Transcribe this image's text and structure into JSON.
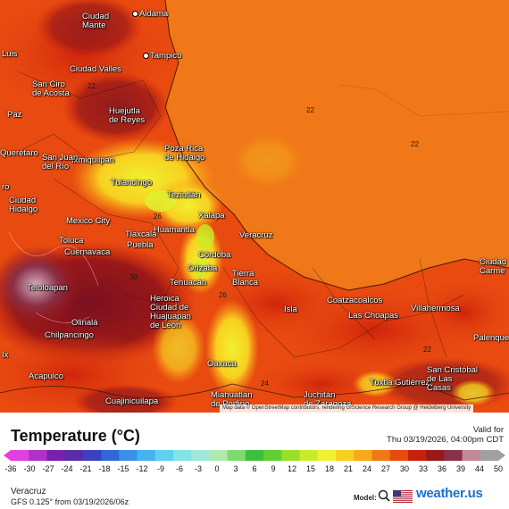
{
  "map": {
    "attribution": "Map data © OpenStreetMap contributors, rendering GIScience Research Group @ Heidelberg University",
    "cities": [
      {
        "name": "Aldama"
      },
      {
        "name": "Ciudad\nMante"
      },
      {
        "name": "Luis"
      },
      {
        "name": "Tampico"
      },
      {
        "name": "Ciudad Valles"
      },
      {
        "name": "San Ciro\nde Acosta"
      },
      {
        "name": "Huejutla\nde Reyes"
      },
      {
        "name": "Poza Rica\nde Hidalgo"
      },
      {
        "name": "Querétaro"
      },
      {
        "name": "Ixmiquilpan"
      },
      {
        "name": "San Juan\ndel Río"
      },
      {
        "name": "Tulancingo"
      },
      {
        "name": "Teziutlán"
      },
      {
        "name": "Xalapa"
      },
      {
        "name": "Veracruz"
      },
      {
        "name": "Ciudad\nHidalgo"
      },
      {
        "name": "Mexico City"
      },
      {
        "name": "Toluca"
      },
      {
        "name": "Huamantla"
      },
      {
        "name": "Tlaxcala"
      },
      {
        "name": "Puebla"
      },
      {
        "name": "Cuernavaca"
      },
      {
        "name": "Córdoba"
      },
      {
        "name": "Orizaba"
      },
      {
        "name": "Tierra\nBlanca"
      },
      {
        "name": "Tehuacán"
      },
      {
        "name": "Teloloapan"
      },
      {
        "name": "Heroica\nCiudad de\nHuajuapan\nde León"
      },
      {
        "name": "Coatzacoalcos"
      },
      {
        "name": "Las Choapas"
      },
      {
        "name": "Villahermosa"
      },
      {
        "name": "Ciudad\nCarme"
      },
      {
        "name": "Isla"
      },
      {
        "name": "Palenque"
      },
      {
        "name": "Olinalá"
      },
      {
        "name": "Chilpancingo"
      },
      {
        "name": "Oaxaca"
      },
      {
        "name": "Acapulco"
      },
      {
        "name": "Miahuatlán\nde Porfirio"
      },
      {
        "name": "Juchitán\nde Zaragoza"
      },
      {
        "name": "Tuxtla Gutiérrez"
      },
      {
        "name": "San Cristóbal\nde Las\nCasas"
      },
      {
        "name": "Cuajinicuilapa"
      },
      {
        "name": "Paz"
      },
      {
        "name": "ro"
      },
      {
        "name": "Ix"
      }
    ],
    "contour_labels": [
      "22",
      "22",
      "22",
      "24",
      "26",
      "26",
      "30",
      "22"
    ]
  },
  "legend": {
    "title": "Temperature (°C)",
    "valid_label": "Valid for",
    "valid_time": "Thu 03/19/2026, 04:00pm CDT",
    "ticks": [
      "-36",
      "-30",
      "-27",
      "-24",
      "-21",
      "-18",
      "-15",
      "-12",
      "-9",
      "-6",
      "-3",
      "0",
      "3",
      "6",
      "9",
      "12",
      "15",
      "18",
      "21",
      "24",
      "27",
      "30",
      "33",
      "36",
      "39",
      "44",
      "50"
    ],
    "colors": [
      "#e040e0",
      "#b030c8",
      "#7a20b0",
      "#5a2aa8",
      "#3a40c0",
      "#2f66d8",
      "#3a90e8",
      "#43b4f0",
      "#5fd0f0",
      "#80e4e8",
      "#9fe8d8",
      "#b0e8b0",
      "#80d870",
      "#3cc03c",
      "#60d030",
      "#98e028",
      "#c8ec28",
      "#f0f030",
      "#f8d020",
      "#f8a818",
      "#f07818",
      "#e84a10",
      "#c8200c",
      "#9a1818",
      "#8a3048",
      "#c08898",
      "#a0a0a0"
    ],
    "location": "Veracruz",
    "model_run": "GFS 0.125° from  03/19/2026/06z",
    "model_label": "Model:",
    "brand": "weather.us"
  }
}
